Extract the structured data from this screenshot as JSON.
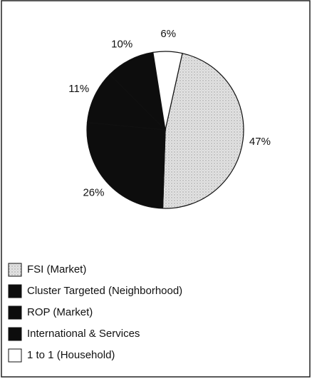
{
  "chart_data": {
    "type": "pie",
    "categories": [
      "FSI (Market)",
      "Cluster Targeted (Neighborhood)",
      "ROP (Market)",
      "International & Services",
      "1 to 1 (Household)"
    ],
    "values": [
      47,
      26,
      11,
      10,
      6
    ],
    "value_labels": [
      "47%",
      "26%",
      "11%",
      "10%",
      "6%"
    ],
    "colors": [
      "#d9d9d9",
      "#0d0d0d",
      "#0d0d0d",
      "#0d0d0d",
      "#ffffff"
    ],
    "legend": "bottom-left"
  }
}
